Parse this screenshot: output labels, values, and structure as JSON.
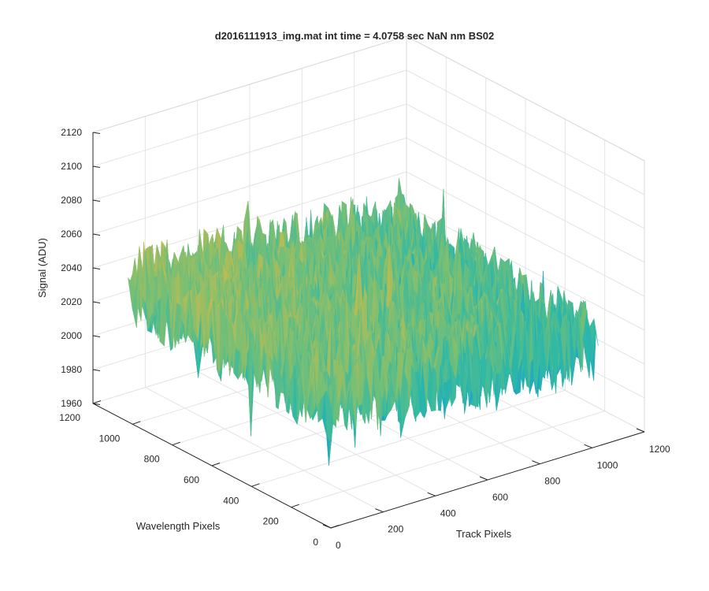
{
  "chart_data": {
    "type": "surface",
    "title": "d2016111913_img.mat int time = 4.0758 sec  NaN nm BS02",
    "xlabel": "Track Pixels",
    "ylabel": "Wavelength Pixels",
    "zlabel": "Signal (ADU)",
    "xlim": [
      0,
      1200
    ],
    "ylim": [
      0,
      1200
    ],
    "zlim": [
      1960,
      2120
    ],
    "xticks": [
      "0",
      "200",
      "400",
      "600",
      "800",
      "1000",
      "1200"
    ],
    "yticks": [
      "0",
      "200",
      "400",
      "600",
      "800",
      "1000",
      "1200"
    ],
    "zticks": [
      "1960",
      "1980",
      "2000",
      "2020",
      "2040",
      "2060",
      "2080",
      "2100",
      "2120"
    ],
    "grid": true,
    "colormap": "parula",
    "colors": [
      "#0a72d8",
      "#17a0cf",
      "#2fb9a6",
      "#7cbf72",
      "#c8bb4c",
      "#f2c534"
    ],
    "surface": {
      "x_range": [
        1,
        1024
      ],
      "y_range": [
        1,
        1024
      ],
      "mean_signal": 2030,
      "noise_amplitude": 25,
      "min_signal": 1975,
      "max_signal": 2095,
      "trend": "signal higher at low track pixels / high wavelength pixels, lower toward high track pixels"
    }
  }
}
